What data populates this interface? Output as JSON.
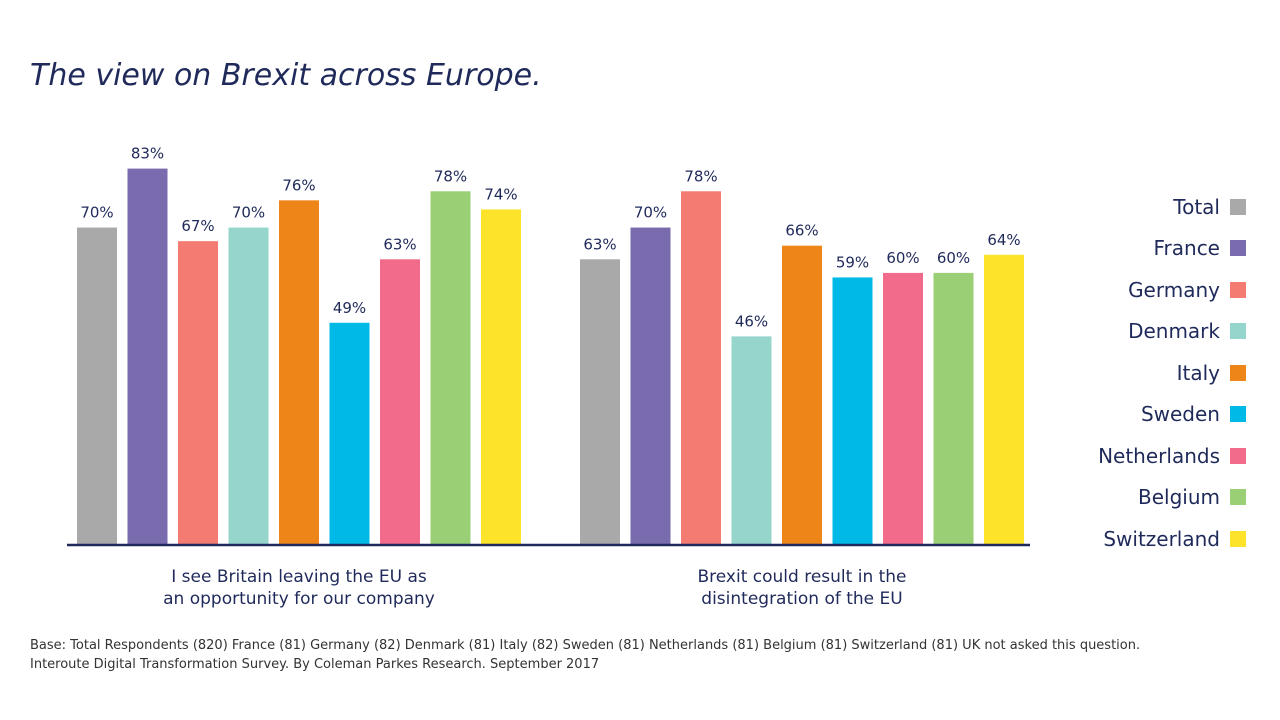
{
  "title": "The view on Brexit across Europe.",
  "footnotes": [
    "Base: Total Respondents (820) France (81) Germany (82) Denmark (81) Italy (82) Sweden (81) Netherlands (81) Belgium (81) Switzerland (81) UK not asked this question.",
    "Interoute Digital Transformation Survey.  By Coleman Parkes Research.  September 2017"
  ],
  "colors": {
    "Total": "#a9a9aa",
    "France": "#7a6aae",
    "Germany": "#f47b72",
    "Denmark": "#95d5cb",
    "Italy": "#ee8519",
    "Sweden": "#00b9e6",
    "Netherlands": "#f36b8a",
    "Belgium": "#9bcf76",
    "Switzerland": "#fde42a",
    "text": "#1f2a5a",
    "axis": "#1f2a5a"
  },
  "chart_data": {
    "type": "bar",
    "title": "The view on Brexit across Europe.",
    "categories": [
      [
        "I see Britain leaving the EU as",
        "an opportunity for our company"
      ],
      [
        "Brexit could result in the",
        "disintegration of the EU"
      ]
    ],
    "value_suffix": "%",
    "ylim": [
      0,
      100
    ],
    "grid": false,
    "legend_position": "right",
    "series": [
      {
        "name": "Total",
        "values": [
          70,
          63
        ]
      },
      {
        "name": "France",
        "values": [
          83,
          70
        ]
      },
      {
        "name": "Germany",
        "values": [
          67,
          78
        ]
      },
      {
        "name": "Denmark",
        "values": [
          70,
          46
        ]
      },
      {
        "name": "Italy",
        "values": [
          76,
          66
        ]
      },
      {
        "name": "Sweden",
        "values": [
          49,
          59
        ]
      },
      {
        "name": "Netherlands",
        "values": [
          63,
          60
        ]
      },
      {
        "name": "Belgium",
        "values": [
          78,
          60
        ]
      },
      {
        "name": "Switzerland",
        "values": [
          74,
          64
        ]
      }
    ]
  }
}
